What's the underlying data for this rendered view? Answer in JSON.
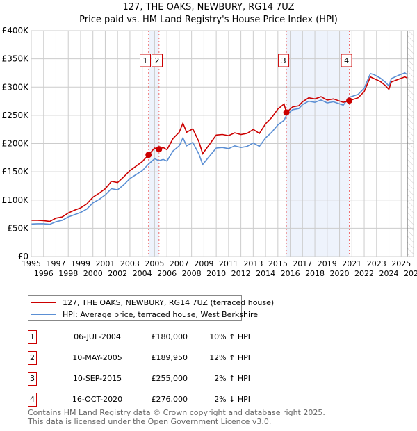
{
  "chart_data": {
    "type": "line",
    "title": "127, THE OAKS, NEWBURY, RG14 7UZ",
    "subtitle": "Price paid vs. HM Land Registry's House Price Index (HPI)",
    "xlim": [
      1995,
      2026
    ],
    "ylim": [
      0,
      400000
    ],
    "x_ticks": [
      "1995",
      "1996",
      "1997",
      "1998",
      "1999",
      "2000",
      "2001",
      "2002",
      "2003",
      "2004",
      "2005",
      "2006",
      "2007",
      "2008",
      "2009",
      "2010",
      "2011",
      "2012",
      "2013",
      "2014",
      "2015",
      "2016",
      "2017",
      "2018",
      "2019",
      "2020",
      "2021",
      "2022",
      "2023",
      "2024",
      "2025",
      "2026"
    ],
    "y_ticks": [
      {
        "value": 0,
        "label": "£0"
      },
      {
        "value": 50000,
        "label": "£50K"
      },
      {
        "value": 100000,
        "label": "£100K"
      },
      {
        "value": 150000,
        "label": "£150K"
      },
      {
        "value": 200000,
        "label": "£200K"
      },
      {
        "value": 250000,
        "label": "£250K"
      },
      {
        "value": 300000,
        "label": "£300K"
      },
      {
        "value": 350000,
        "label": "£350K"
      },
      {
        "value": 400000,
        "label": "£400K"
      }
    ],
    "grid": true,
    "forecast_from": 2025.5,
    "shaded_ranges": [
      [
        2004.51,
        2005.36
      ],
      [
        2015.69,
        2020.79
      ]
    ],
    "series": [
      {
        "name": "127, THE OAKS, NEWBURY, RG14 7UZ (terraced house)",
        "color": "#cc0000",
        "points": [
          [
            1995.0,
            64
          ],
          [
            1995.5,
            64
          ],
          [
            1996.0,
            63.5
          ],
          [
            1996.5,
            62
          ],
          [
            1997.0,
            68
          ],
          [
            1997.5,
            70
          ],
          [
            1998.0,
            77
          ],
          [
            1998.5,
            82
          ],
          [
            1999.0,
            86
          ],
          [
            1999.5,
            93
          ],
          [
            2000.0,
            105
          ],
          [
            2000.5,
            112
          ],
          [
            2001.0,
            120
          ],
          [
            2001.5,
            133
          ],
          [
            2002.0,
            131
          ],
          [
            2002.5,
            141
          ],
          [
            2003.0,
            152
          ],
          [
            2003.5,
            160
          ],
          [
            2004.0,
            168
          ],
          [
            2004.51,
            180
          ],
          [
            2005.0,
            192
          ],
          [
            2005.36,
            189.95
          ],
          [
            2005.7,
            193
          ],
          [
            2006.0,
            189
          ],
          [
            2006.5,
            209
          ],
          [
            2007.0,
            220
          ],
          [
            2007.3,
            236
          ],
          [
            2007.6,
            220
          ],
          [
            2008.1,
            226
          ],
          [
            2008.6,
            203
          ],
          [
            2008.9,
            182
          ],
          [
            2009.5,
            200
          ],
          [
            2010.0,
            215
          ],
          [
            2010.5,
            216
          ],
          [
            2011.0,
            214
          ],
          [
            2011.5,
            219
          ],
          [
            2012.0,
            216
          ],
          [
            2012.5,
            218
          ],
          [
            2013.0,
            225
          ],
          [
            2013.5,
            218
          ],
          [
            2014.0,
            235
          ],
          [
            2014.5,
            246
          ],
          [
            2015.0,
            261
          ],
          [
            2015.5,
            270
          ],
          [
            2015.69,
            255
          ],
          [
            2016.2,
            265
          ],
          [
            2016.7,
            267
          ],
          [
            2017.0,
            274
          ],
          [
            2017.5,
            281
          ],
          [
            2018.0,
            279
          ],
          [
            2018.5,
            283
          ],
          [
            2019.0,
            277
          ],
          [
            2019.5,
            279
          ],
          [
            2020.3,
            273
          ],
          [
            2020.79,
            276
          ],
          [
            2021.5,
            281
          ],
          [
            2022.0,
            292
          ],
          [
            2022.5,
            318
          ],
          [
            2022.8,
            315
          ],
          [
            2023.3,
            310
          ],
          [
            2023.7,
            303
          ],
          [
            2024.0,
            296
          ],
          [
            2024.2,
            309
          ],
          [
            2024.8,
            314
          ],
          [
            2025.3,
            318
          ],
          [
            2025.5,
            316
          ]
        ]
      },
      {
        "name": "HPI: Average price, terraced house, West Berkshire",
        "color": "#5b8fd4",
        "points": [
          [
            1995.0,
            57.5
          ],
          [
            1995.5,
            58
          ],
          [
            1996.0,
            58
          ],
          [
            1996.5,
            57
          ],
          [
            1997.0,
            61.5
          ],
          [
            1997.5,
            64
          ],
          [
            1998.0,
            70
          ],
          [
            1998.5,
            74
          ],
          [
            1999.0,
            78
          ],
          [
            1999.5,
            84
          ],
          [
            2000.0,
            95
          ],
          [
            2000.5,
            101
          ],
          [
            2001.0,
            109
          ],
          [
            2001.5,
            120
          ],
          [
            2002.0,
            118
          ],
          [
            2002.5,
            127
          ],
          [
            2003.0,
            138
          ],
          [
            2003.5,
            145
          ],
          [
            2004.0,
            152
          ],
          [
            2004.51,
            163.6
          ],
          [
            2005.0,
            173
          ],
          [
            2005.36,
            169.6
          ],
          [
            2005.7,
            172
          ],
          [
            2006.0,
            169
          ],
          [
            2006.5,
            187
          ],
          [
            2007.0,
            196
          ],
          [
            2007.3,
            210
          ],
          [
            2007.6,
            196
          ],
          [
            2008.1,
            202
          ],
          [
            2008.6,
            181
          ],
          [
            2008.9,
            163
          ],
          [
            2009.5,
            179
          ],
          [
            2010.0,
            192
          ],
          [
            2010.5,
            193
          ],
          [
            2011.0,
            191
          ],
          [
            2011.5,
            196
          ],
          [
            2012.0,
            193
          ],
          [
            2012.5,
            195
          ],
          [
            2013.0,
            201
          ],
          [
            2013.5,
            195
          ],
          [
            2014.0,
            210
          ],
          [
            2014.5,
            220
          ],
          [
            2015.0,
            233
          ],
          [
            2015.5,
            241
          ],
          [
            2015.69,
            250
          ],
          [
            2016.2,
            260
          ],
          [
            2016.7,
            262
          ],
          [
            2017.0,
            269
          ],
          [
            2017.5,
            275
          ],
          [
            2018.0,
            273
          ],
          [
            2018.5,
            277
          ],
          [
            2019.0,
            272
          ],
          [
            2019.5,
            274
          ],
          [
            2020.3,
            268
          ],
          [
            2020.79,
            282
          ],
          [
            2021.5,
            287
          ],
          [
            2022.0,
            298
          ],
          [
            2022.5,
            324
          ],
          [
            2022.8,
            322
          ],
          [
            2023.3,
            316
          ],
          [
            2023.7,
            309
          ],
          [
            2024.0,
            302
          ],
          [
            2024.2,
            315
          ],
          [
            2024.8,
            321
          ],
          [
            2025.3,
            325
          ],
          [
            2025.5,
            322
          ]
        ]
      }
    ],
    "value_unit": "thousands GBP",
    "sales": [
      {
        "num": "1",
        "x": 2004.51,
        "value": 180,
        "date": "06-JUL-2004",
        "price": "£180,000",
        "hpi": "10% ↑ HPI"
      },
      {
        "num": "2",
        "x": 2005.36,
        "value": 189.95,
        "date": "10-MAY-2005",
        "price": "£189,950",
        "hpi": "12% ↑ HPI"
      },
      {
        "num": "3",
        "x": 2015.69,
        "value": 255,
        "date": "10-SEP-2015",
        "price": "£255,000",
        "hpi": "2% ↑ HPI"
      },
      {
        "num": "4",
        "x": 2020.79,
        "value": 276,
        "date": "16-OCT-2020",
        "price": "£276,000",
        "hpi": "2% ↓ HPI"
      }
    ]
  },
  "legend": {
    "red_label": "127, THE OAKS, NEWBURY, RG14 7UZ (terraced house)",
    "blue_label": "HPI: Average price, terraced house, West Berkshire"
  },
  "footer": {
    "line1": "Contains HM Land Registry data © Crown copyright and database right 2025.",
    "line2": "This data is licensed under the Open Government Licence v3.0."
  }
}
